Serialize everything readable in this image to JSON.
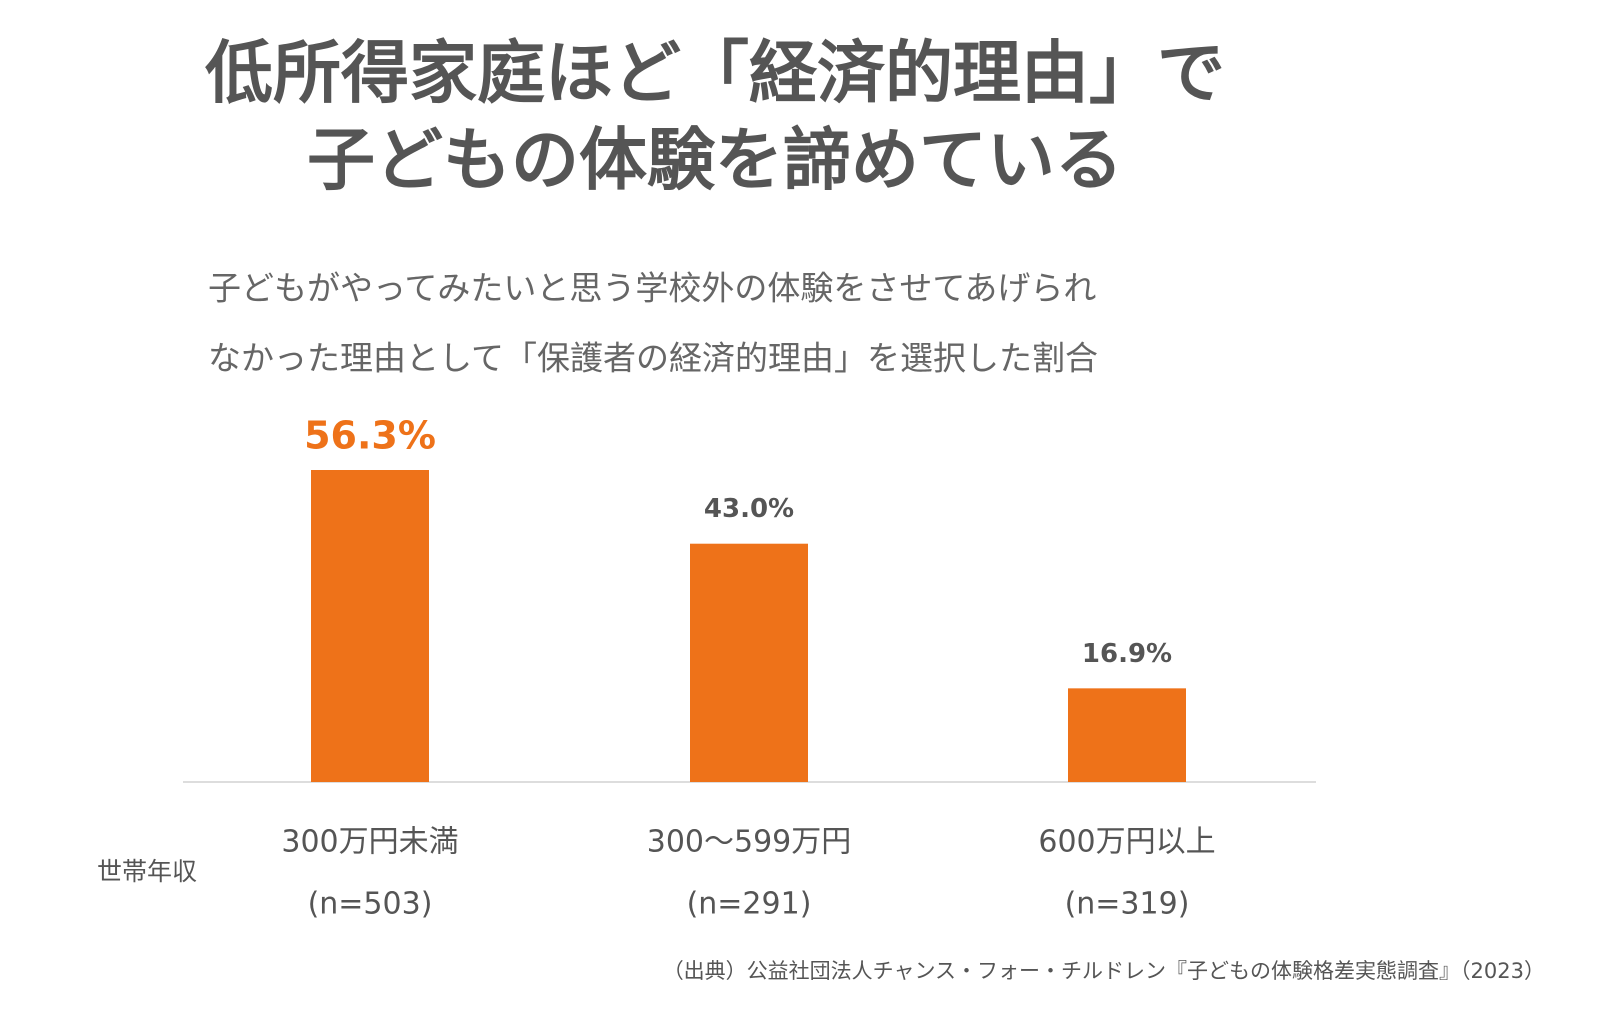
{
  "chart_data": {
    "type": "bar",
    "title": [
      "低所得家庭ほど「経済的理由」で",
      "子どもの体験を諦めている"
    ],
    "subtitle": [
      "子どもがやってみたいと思う学校外の体験をさせてあげられ",
      "なかった理由として「保護者の経済的理由」を選択した割合"
    ],
    "x_label": "世帯年収",
    "categories": [
      "300万円未満",
      "300〜599万円",
      "600万円以上"
    ],
    "category_notes": [
      "(n=503)",
      "(n=291)",
      "(n=319)"
    ],
    "values": [
      56.3,
      43.0,
      16.9
    ],
    "value_labels": [
      "56.3%",
      "43.0%",
      "16.9%"
    ],
    "color": "#ee7219",
    "source": "（出典）公益社団法人チャンス・フォー・チルドレン『子どもの体験格差実態調査』（2023）"
  }
}
